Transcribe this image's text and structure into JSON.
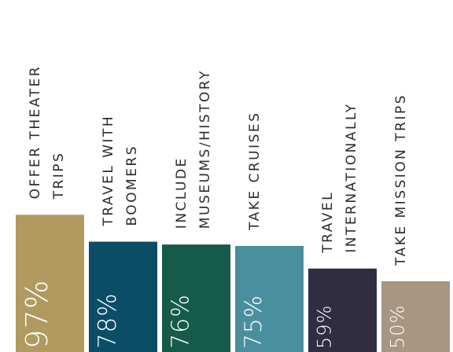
{
  "chart_data": {
    "type": "bar",
    "title": "",
    "xlabel": "",
    "ylabel": "",
    "ylim": [
      0,
      100
    ],
    "grid": false,
    "categories": [
      [
        "OFFER THEATER",
        "TRIPS"
      ],
      [
        "TRAVEL WITH",
        "BOOMERS"
      ],
      [
        "INCLUDE",
        "MUSEUMS/HISTORY"
      ],
      [
        "TAKE CRUISES"
      ],
      [
        "TRAVEL",
        "INTERNATIONALLY"
      ],
      [
        "TAKE MISSION TRIPS"
      ]
    ],
    "values": [
      97,
      78,
      76,
      75,
      59,
      50
    ],
    "value_labels": [
      "97%",
      "78%",
      "76%",
      "75%",
      "59%",
      "50%"
    ],
    "colors": [
      "#b09a5f",
      "#0b4d67",
      "#165a4a",
      "#4a8f9e",
      "#302c42",
      "#a89683"
    ],
    "category_color": "#2c2c2c",
    "value_label_color": "#ffffff"
  }
}
